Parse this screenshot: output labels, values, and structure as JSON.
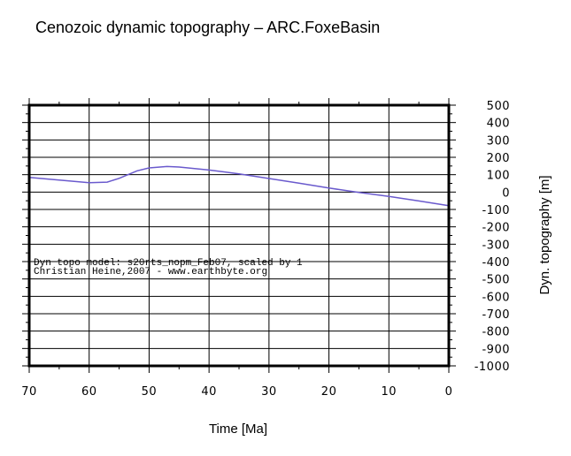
{
  "chart_data": {
    "type": "line",
    "title": "Cenozoic dynamic topography – ARC.FoxeBasin",
    "xlabel": "Time [Ma]",
    "ylabel": "Dyn. topography [m]",
    "xlim": [
      70,
      0
    ],
    "ylim": [
      -1000,
      500
    ],
    "x_ticks": [
      70,
      60,
      50,
      40,
      30,
      20,
      10,
      0
    ],
    "y_ticks": [
      500,
      400,
      300,
      200,
      100,
      0,
      -100,
      -200,
      -300,
      -400,
      -500,
      -600,
      -700,
      -800,
      -900,
      -1000
    ],
    "grid": true,
    "line_color": "#6a5acd",
    "annotations": [
      "Dyn topo model: s20rts_nopm_Feb07, scaled by 1",
      "Christian Heine,2007 - www.earthbyte.org"
    ],
    "series": [
      {
        "x": [
          70,
          65,
          60,
          57,
          55,
          52,
          50,
          47,
          45,
          40,
          35,
          30,
          25,
          20,
          15,
          10,
          5,
          0
        ],
        "values": [
          84,
          69,
          54,
          57,
          79,
          122,
          139,
          147,
          144,
          127,
          105,
          78,
          51,
          23,
          -2,
          -25,
          -51,
          -78
        ]
      }
    ]
  }
}
